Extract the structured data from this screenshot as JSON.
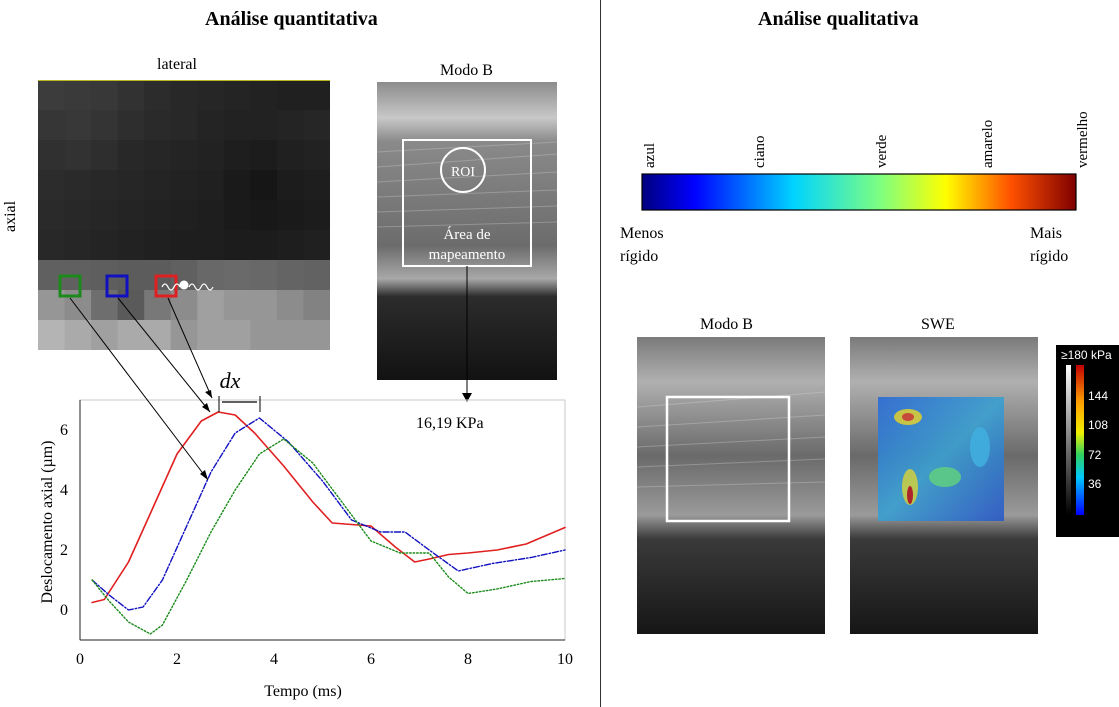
{
  "quantitative": {
    "title": "Análise quantitativa",
    "grid": {
      "lateral_label": "lateral",
      "axial_label": "axial"
    },
    "bmode": {
      "title": "Modo B",
      "roi_label": "ROI",
      "area_line1": "Área de",
      "area_line2": "mapeamento",
      "measurement": "16,19 KPa"
    },
    "chart": {
      "dx_label": "dx",
      "xlabel": "Tempo (ms)",
      "ylabel": "Deslocamento axial (µm)"
    }
  },
  "qualitative": {
    "title": "Análise qualitativa",
    "color_labels": [
      "azul",
      "ciano",
      "verde",
      "amarelo",
      "vermelho"
    ],
    "less_stiff": [
      "Menos",
      "rígido"
    ],
    "more_stiff": [
      "Mais",
      "rígido"
    ],
    "bmode_title": "Modo B",
    "swe_title": "SWE",
    "colorbar": {
      "max_label": "≥180 kPa",
      "ticks": [
        "144",
        "108",
        "72",
        "36"
      ]
    }
  },
  "colors": {
    "red": "#e02020",
    "blue": "#1010c0",
    "green": "#1a8a1a",
    "roi_white": "#ffffff"
  },
  "chart_data": {
    "type": "line",
    "xlabel": "Tempo (ms)",
    "ylabel": "Deslocamento axial (µm)",
    "xlim": [
      0,
      10
    ],
    "ylim": [
      -1,
      7
    ],
    "xticks": [
      0,
      2,
      4,
      6,
      8,
      10
    ],
    "yticks": [
      0,
      2,
      4,
      6
    ],
    "series": [
      {
        "color": "red",
        "style": "solid",
        "x": [
          0.25,
          0.5,
          1.0,
          1.5,
          2.0,
          2.5,
          2.85,
          3.2,
          3.6,
          4.2,
          4.8,
          5.2,
          5.6,
          6.0,
          6.5,
          6.9,
          7.2,
          7.6,
          8.0,
          8.6,
          9.2,
          10.0
        ],
        "y": [
          0.25,
          0.35,
          1.6,
          3.4,
          5.2,
          6.3,
          6.6,
          6.5,
          5.9,
          4.8,
          3.6,
          2.9,
          2.85,
          2.8,
          2.1,
          1.6,
          1.7,
          1.85,
          1.9,
          2.0,
          2.2,
          2.75
        ]
      },
      {
        "color": "blue",
        "style": "dash-dot",
        "x": [
          0.25,
          0.6,
          1.0,
          1.3,
          1.7,
          2.2,
          2.7,
          3.2,
          3.7,
          4.3,
          5.0,
          5.6,
          6.2,
          6.7,
          7.2,
          7.8,
          8.5,
          9.3,
          10.0
        ],
        "y": [
          1.0,
          0.5,
          0.0,
          0.1,
          1.0,
          2.8,
          4.6,
          5.9,
          6.4,
          5.6,
          4.3,
          3.0,
          2.6,
          2.6,
          2.0,
          1.3,
          1.55,
          1.75,
          2.0
        ]
      },
      {
        "color": "green",
        "style": "dotted",
        "x": [
          0.25,
          0.6,
          1.0,
          1.45,
          1.7,
          2.2,
          2.7,
          3.2,
          3.7,
          4.2,
          4.8,
          5.4,
          6.0,
          6.6,
          7.2,
          7.6,
          8.0,
          8.6,
          9.3,
          10.0
        ],
        "y": [
          1.0,
          0.3,
          -0.4,
          -0.8,
          -0.5,
          1.0,
          2.6,
          4.0,
          5.2,
          5.7,
          4.9,
          3.6,
          2.3,
          1.9,
          1.9,
          1.1,
          0.55,
          0.7,
          0.95,
          1.05
        ]
      }
    ]
  }
}
